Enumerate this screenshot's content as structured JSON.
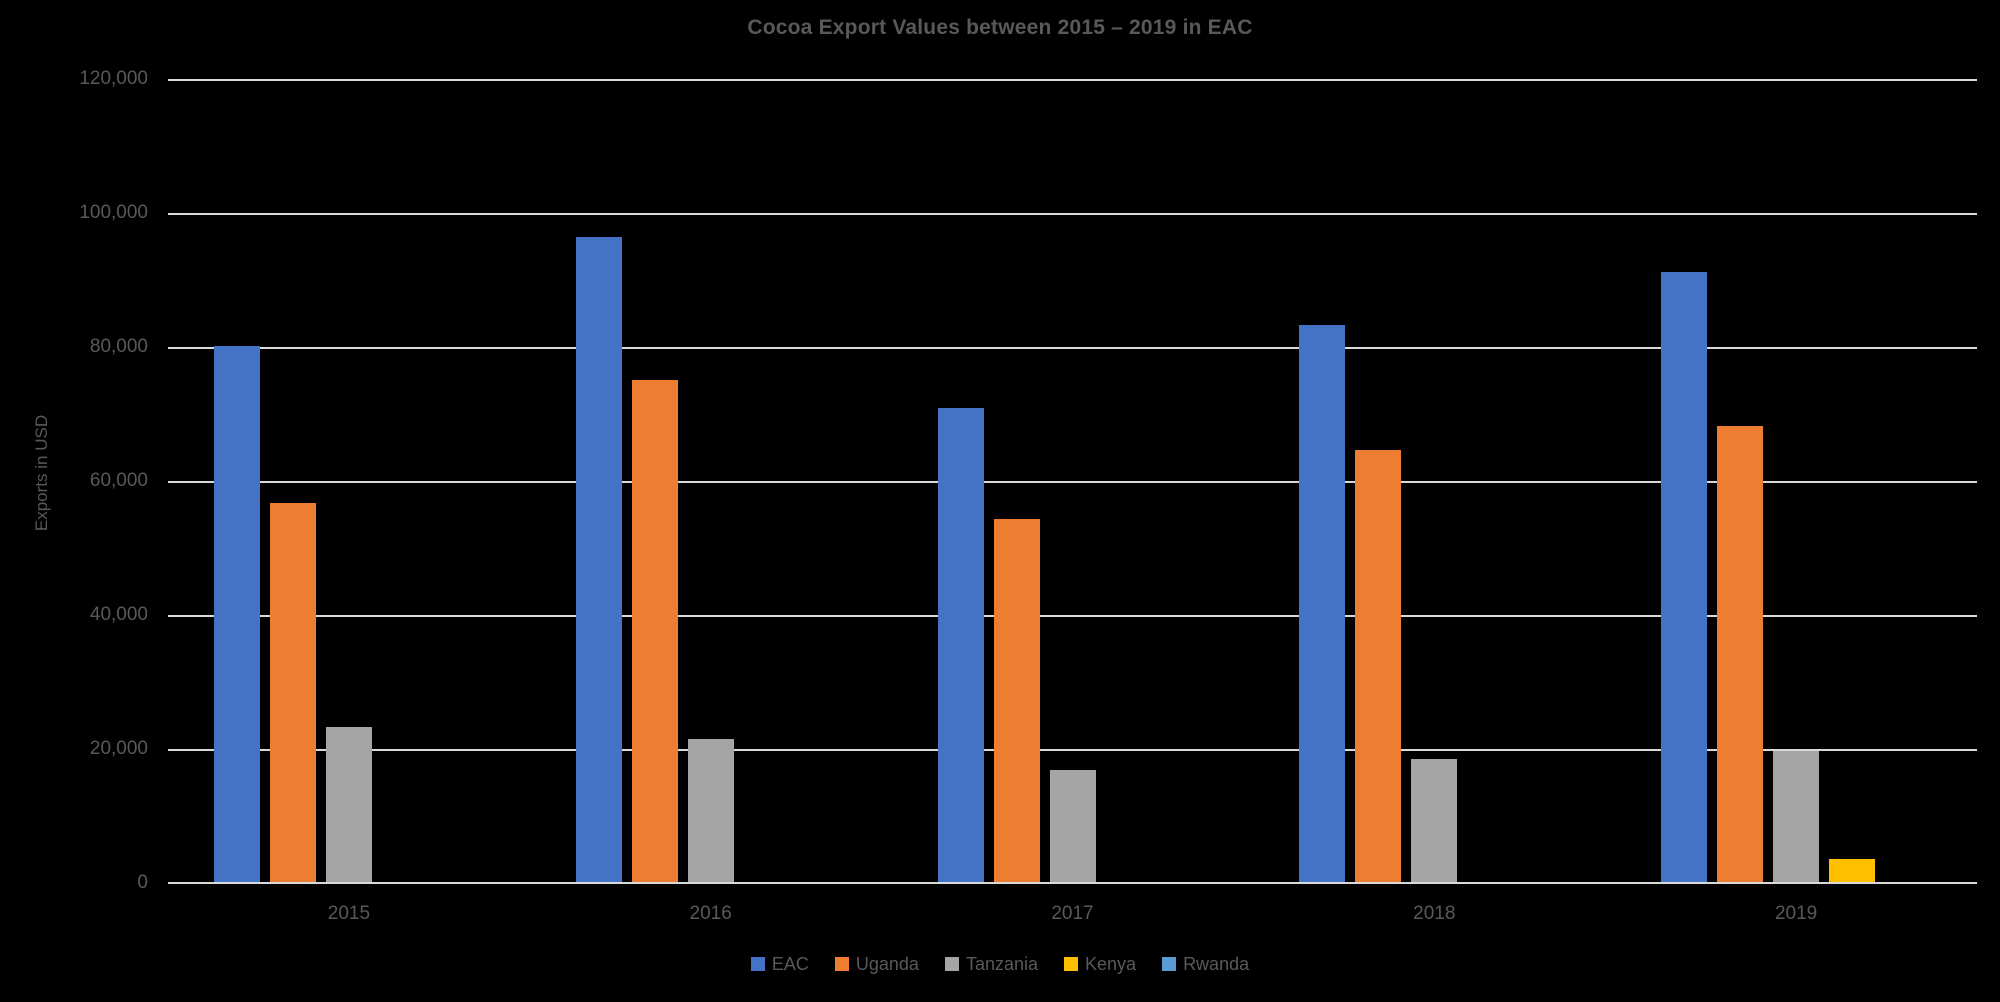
{
  "chart_data": {
    "type": "bar",
    "title": "Cocoa Export Values between 2015 – 2019 in EAC",
    "ylabel": "Exports in USD",
    "xlabel": "",
    "categories": [
      "2015",
      "2016",
      "2017",
      "2018",
      "2019"
    ],
    "series": [
      {
        "name": "EAC",
        "color": "#4472C4",
        "values": [
          80000,
          96200,
          70800,
          83100,
          91000
        ]
      },
      {
        "name": "Uganda",
        "color": "#ED7D31",
        "values": [
          56600,
          75000,
          54200,
          64500,
          68000
        ]
      },
      {
        "name": "Tanzania",
        "color": "#A5A5A5",
        "values": [
          23100,
          21300,
          16700,
          18300,
          19500
        ]
      },
      {
        "name": "Kenya",
        "color": "#FFC000",
        "values": [
          0,
          0,
          0,
          0,
          3500
        ]
      },
      {
        "name": "Rwanda",
        "color": "#5B9BD5",
        "values": [
          0,
          0,
          0,
          0,
          0
        ]
      }
    ],
    "ylim": [
      0,
      120000
    ],
    "ytick_step": 20000,
    "ytick_labels": [
      "0",
      "20,000",
      "40,000",
      "60,000",
      "80,000",
      "100,000",
      "120,000"
    ],
    "grid": true,
    "legend_position": "bottom",
    "colors": {
      "background": "#000000",
      "text": "#595959",
      "gridline": "#D9D9D9"
    }
  }
}
